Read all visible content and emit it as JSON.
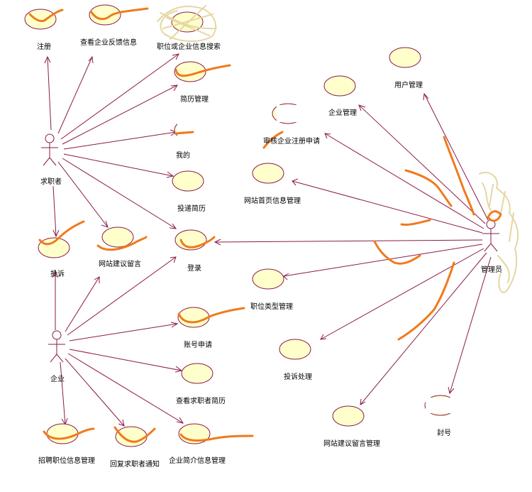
{
  "actors": {
    "job_seeker": "求职者",
    "company": "企业",
    "admin": "管理员"
  },
  "use_cases": {
    "register": "注册",
    "view_feedback": "查看企业反馈信息",
    "job_search": "职位或企业信息搜索",
    "resume_mgmt": "简历管理",
    "my_info": "我的",
    "deliver_resume": "投递简历",
    "complaint": "投诉",
    "site_advice": "网站建议留言",
    "login": "登录",
    "account_apply": "账号申请",
    "view_resume": "查看求职者简历",
    "job_info_mgmt": "招聘职位信息管理",
    "reply_notice": "回复求职者通知",
    "company_intro_mgmt": "企业简介信息管理",
    "user_mgmt": "用户管理",
    "company_mgmt": "企业管理",
    "audit_register": "审核企业注册申请",
    "homepage_mgmt": "网站首页信息管理",
    "job_type_mgmt": "职位类型管理",
    "complaint_handle": "投诉处理",
    "advice_mgmt": "网站建议留言管理",
    "ban": "封号"
  }
}
